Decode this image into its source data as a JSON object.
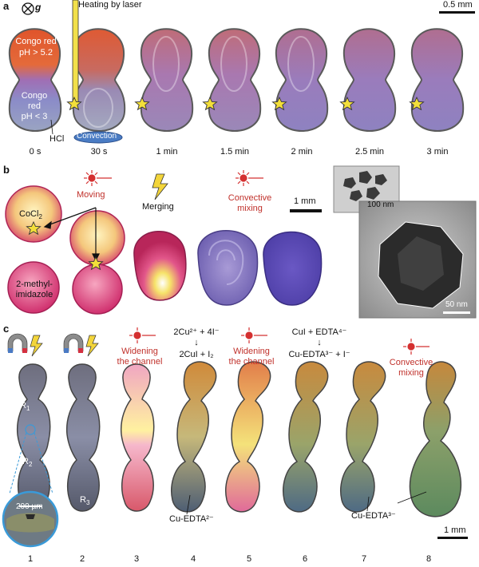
{
  "panel_a": {
    "letter": "a",
    "gravity_label": "g",
    "heating_label": "Heating by laser",
    "scale_bar": "0.5 mm",
    "congo_top": "Congo red",
    "congo_top_ph": "pH > 5.2",
    "congo_bottom_1": "Congo",
    "congo_bottom_2": "red",
    "congo_bottom_ph": "pH < 3",
    "hcl": "HCl",
    "convection": "Convection",
    "times": [
      "0 s",
      "30 s",
      "1 min",
      "1.5 min",
      "2 min",
      "2.5 min",
      "3 min"
    ]
  },
  "panel_b": {
    "letter": "b",
    "cocl2": "CoCl",
    "cocl2_sub": "2",
    "methyl_1": "2-methyl-",
    "methyl_2": "imidazole",
    "moving": "Moving",
    "merging": "Merging",
    "convective_1": "Convective",
    "convective_2": "mixing",
    "scale_bar": "1 mm",
    "inset_scale": "100 nm",
    "tem_scale": "50 nm"
  },
  "panel_c": {
    "letter": "c",
    "widening_1": "Widening",
    "widening_2": "the channel",
    "reaction_1_top": "2Cu²⁺ + 4I⁻",
    "reaction_1_arrow": "↓",
    "reaction_1_bottom": "2CuI + I₂",
    "reaction_2_top": "CuI + EDTA⁴⁻",
    "reaction_2_arrow": "↓",
    "reaction_2_bottom": "Cu-EDTA³⁻ + I⁻",
    "convective_1": "Convective",
    "convective_2": "mixing",
    "r1": "R",
    "r1_sub": "1",
    "r2": "R",
    "r2_sub": "2",
    "r3": "R",
    "r3_sub": "3",
    "inset_scale": "200 µm",
    "cu_edta2": "Cu-EDTA²⁻",
    "cu_edta3": "Cu-EDTA³⁻",
    "scale_bar": "1 mm",
    "numbers": [
      "1",
      "2",
      "3",
      "4",
      "5",
      "6",
      "7",
      "8"
    ]
  }
}
